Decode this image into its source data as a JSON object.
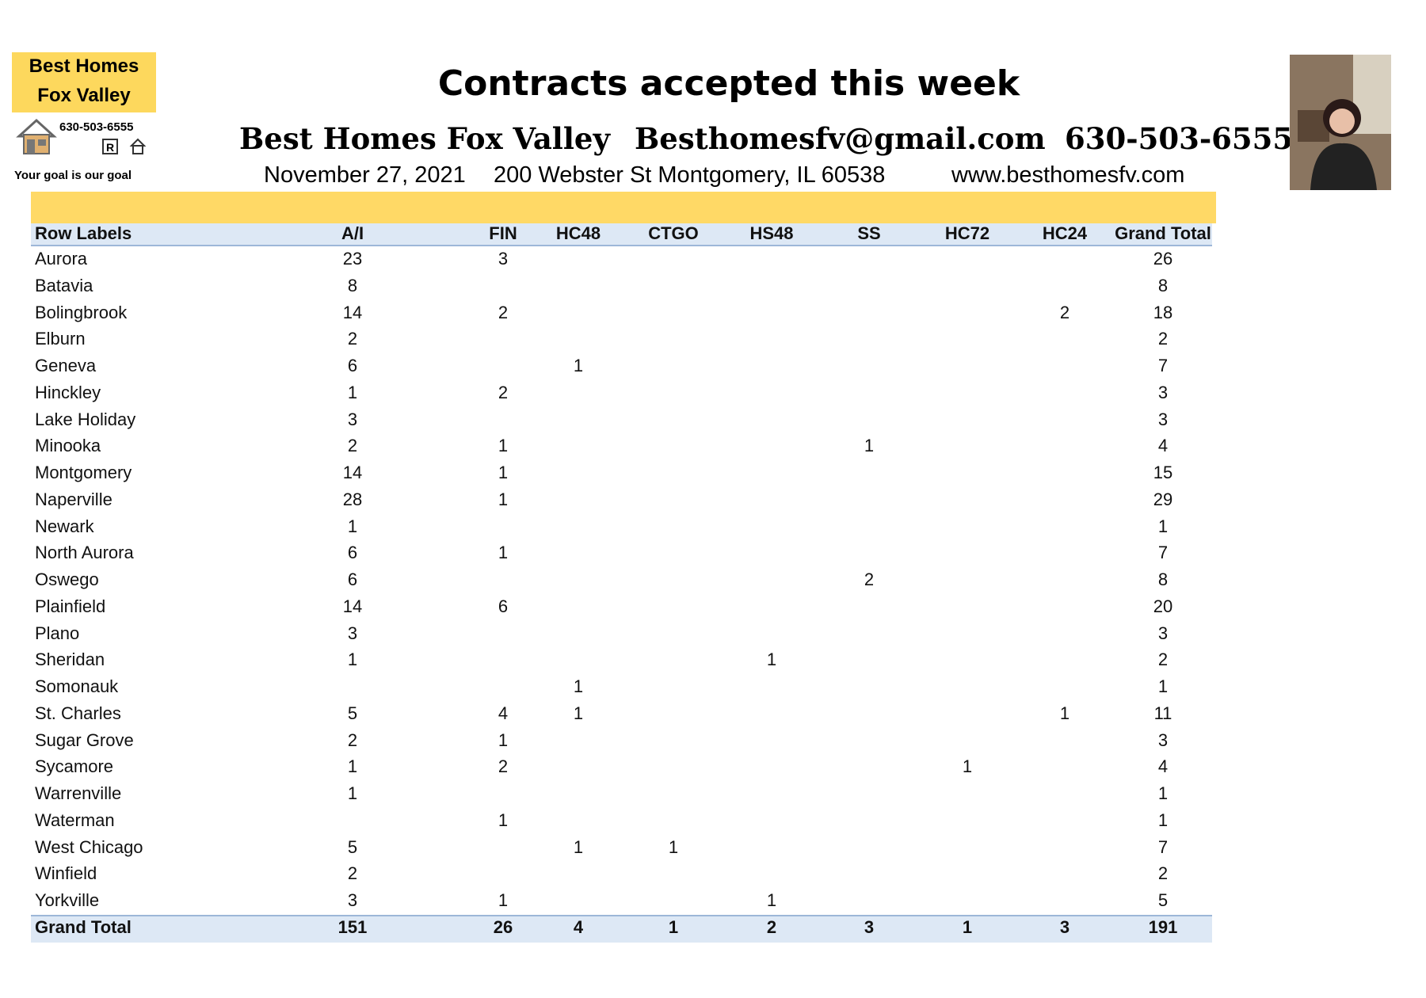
{
  "header": {
    "title": "Contracts accepted this week",
    "company": "Best Homes Fox Valley",
    "email": "Besthomesfv@gmail.com",
    "phone": "630-503-6555",
    "date": "November 27, 2021",
    "address": "200 Webster St Montgomery, IL 60538",
    "website": "www.besthomesfv.com"
  },
  "logo": {
    "line1": "Best Homes",
    "line2": "Fox Valley",
    "phone": "630-503-6555",
    "tagline": "Your goal is our goal"
  },
  "table": {
    "columns": [
      "Row Labels",
      "A/I",
      "FIN",
      "HC48",
      "CTGO",
      "HS48",
      "SS",
      "HC72",
      "HC24",
      "Grand Total"
    ],
    "rows": [
      [
        "Aurora",
        23,
        3,
        null,
        null,
        null,
        null,
        null,
        null,
        26
      ],
      [
        "Batavia",
        8,
        null,
        null,
        null,
        null,
        null,
        null,
        null,
        8
      ],
      [
        "Bolingbrook",
        14,
        2,
        null,
        null,
        null,
        null,
        null,
        2,
        18
      ],
      [
        "Elburn",
        2,
        null,
        null,
        null,
        null,
        null,
        null,
        null,
        2
      ],
      [
        "Geneva",
        6,
        null,
        1,
        null,
        null,
        null,
        null,
        null,
        7
      ],
      [
        "Hinckley",
        1,
        2,
        null,
        null,
        null,
        null,
        null,
        null,
        3
      ],
      [
        "Lake Holiday",
        3,
        null,
        null,
        null,
        null,
        null,
        null,
        null,
        3
      ],
      [
        "Minooka",
        2,
        1,
        null,
        null,
        null,
        1,
        null,
        null,
        4
      ],
      [
        "Montgomery",
        14,
        1,
        null,
        null,
        null,
        null,
        null,
        null,
        15
      ],
      [
        "Naperville",
        28,
        1,
        null,
        null,
        null,
        null,
        null,
        null,
        29
      ],
      [
        "Newark",
        1,
        null,
        null,
        null,
        null,
        null,
        null,
        null,
        1
      ],
      [
        "North Aurora",
        6,
        1,
        null,
        null,
        null,
        null,
        null,
        null,
        7
      ],
      [
        "Oswego",
        6,
        null,
        null,
        null,
        null,
        2,
        null,
        null,
        8
      ],
      [
        "Plainfield",
        14,
        6,
        null,
        null,
        null,
        null,
        null,
        null,
        20
      ],
      [
        "Plano",
        3,
        null,
        null,
        null,
        null,
        null,
        null,
        null,
        3
      ],
      [
        "Sheridan",
        1,
        null,
        null,
        null,
        1,
        null,
        null,
        null,
        2
      ],
      [
        "Somonauk",
        null,
        null,
        1,
        null,
        null,
        null,
        null,
        null,
        1
      ],
      [
        "St. Charles",
        5,
        4,
        1,
        null,
        null,
        null,
        null,
        1,
        11
      ],
      [
        "Sugar Grove",
        2,
        1,
        null,
        null,
        null,
        null,
        null,
        null,
        3
      ],
      [
        "Sycamore",
        1,
        2,
        null,
        null,
        null,
        null,
        1,
        null,
        4
      ],
      [
        "Warrenville",
        1,
        null,
        null,
        null,
        null,
        null,
        null,
        null,
        1
      ],
      [
        "Waterman",
        null,
        1,
        null,
        null,
        null,
        null,
        null,
        null,
        1
      ],
      [
        "West Chicago",
        5,
        null,
        1,
        1,
        null,
        null,
        null,
        null,
        7
      ],
      [
        "Winfield",
        2,
        null,
        null,
        null,
        null,
        null,
        null,
        null,
        2
      ],
      [
        "Yorkville",
        3,
        1,
        null,
        null,
        1,
        null,
        null,
        null,
        5
      ]
    ],
    "total": [
      "Grand Total",
      151,
      26,
      4,
      1,
      2,
      3,
      1,
      3,
      191
    ]
  }
}
